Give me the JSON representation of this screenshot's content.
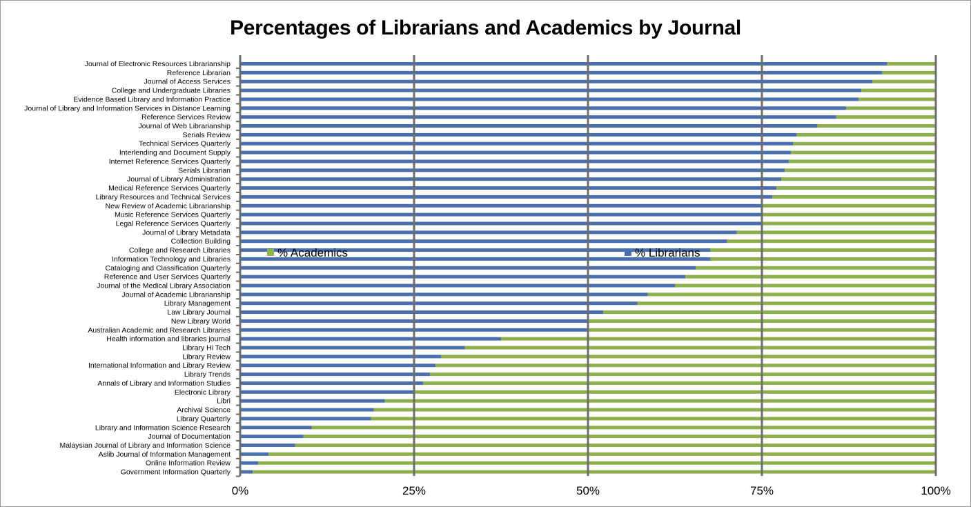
{
  "chart_data": {
    "type": "bar",
    "stacked": true,
    "orientation": "horizontal",
    "title": "Percentages of Librarians and Academics by Journal",
    "xlabel": "",
    "ylabel": "",
    "xlim": [
      0,
      100
    ],
    "xticks": [
      "0%",
      "25%",
      "50%",
      "75%",
      "100%"
    ],
    "grid": true,
    "categories": [
      "Journal of Electronic Resources Librarianship",
      "Reference Librarian",
      "Journal of Access Services",
      "College and Undergraduate Libraries",
      "Evidence Based Library and Information Practice",
      "Journal of Library and Information Services in Distance Learning",
      "Reference Services Review",
      "Journal of Web Librarianship",
      "Serials Review",
      "Technical Services Quarterly",
      "Interlending and Document Supply",
      "Internet Reference Services Quarterly",
      "Serials Librarian",
      "Journal of Library Administration",
      "Medical Reference Services Quarterly",
      "Library Resources and Technical Services",
      "New Review of Academic Librarianship",
      "Music Reference Services Quarterly",
      "Legal Reference Services Quarterly",
      "Journal of Library Metadata",
      "Collection Building",
      "College and Research Libraries",
      "Information Technology and Libraries",
      "Cataloging and Classification Quarterly",
      "Reference and User Services Quarterly",
      "Journal of the Medical Library Association",
      "Journal of Academic Librarianship",
      "Library Management",
      "Law Library Journal",
      "New Library World",
      "Australian Academic and Research Libraries",
      "Health information and libraries journal",
      "Library Hi Tech",
      "Library Review",
      "International Information and Library Review",
      "Library Trends",
      "Annals of Library and Information Studies",
      "Electronic Library",
      "Libri",
      "Archival Science",
      "Library Quarterly",
      "Library and Information Science Research",
      "Journal of Documentation",
      "Malaysian Journal of Library and Information Science",
      "Aslib Journal of Information Management",
      "Online Information Review",
      "Government Information Quarterly"
    ],
    "series": [
      {
        "name": "% Librarians",
        "color": "#4a6fae",
        "values": [
          93,
          92.3,
          90.9,
          89.3,
          88.9,
          87.1,
          85.7,
          83,
          80,
          79.5,
          79.2,
          78.9,
          78.3,
          77.8,
          77.1,
          76.5,
          75,
          75,
          75,
          71.4,
          70,
          67.6,
          67.6,
          65.5,
          64,
          62.5,
          58.6,
          57.1,
          52.2,
          50,
          50,
          37.5,
          32.3,
          28.9,
          28.1,
          27.3,
          26.3,
          25,
          20.8,
          19.2,
          18.8,
          10.3,
          9.1,
          7.9,
          4.1,
          2.6,
          1.8
        ]
      },
      {
        "name": "% Academics",
        "color": "#8db04c",
        "values": [
          7,
          7.7,
          9.1,
          10.7,
          11.1,
          12.9,
          14.3,
          17,
          20,
          20.5,
          20.8,
          21.1,
          21.7,
          22.2,
          22.9,
          23.5,
          25,
          25,
          25,
          28.6,
          30,
          32.4,
          32.4,
          34.5,
          36,
          37.5,
          41.4,
          42.9,
          47.8,
          50,
          50,
          62.5,
          67.7,
          71.1,
          71.9,
          72.7,
          73.7,
          75,
          79.2,
          80.8,
          81.2,
          89.7,
          90.9,
          92.1,
          95.9,
          97.4,
          98.2
        ]
      }
    ],
    "legend": [
      {
        "label": "% Academics",
        "color": "#8db04c",
        "placement": "center-left"
      },
      {
        "label": "% Librarians",
        "color": "#4a6fae",
        "placement": "center"
      }
    ]
  }
}
